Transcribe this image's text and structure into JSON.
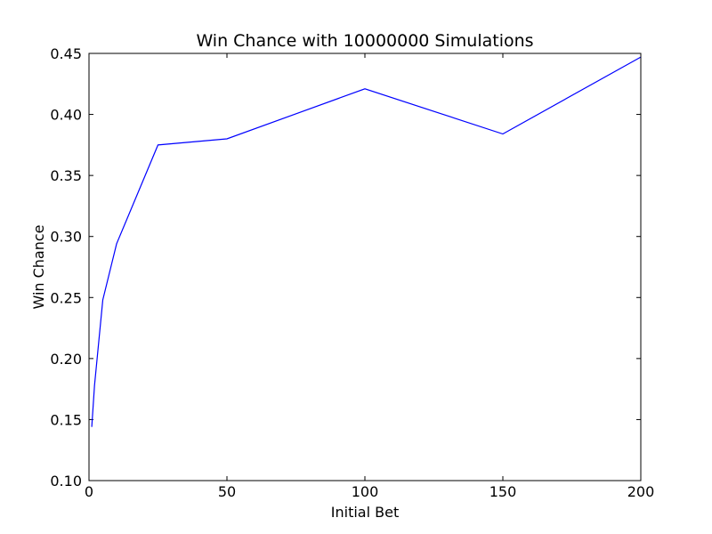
{
  "chart_data": {
    "type": "line",
    "title": "Win Chance with 10000000 Simulations",
    "xlabel": "Initial Bet",
    "ylabel": "Win Chance",
    "xlim": [
      0,
      200
    ],
    "ylim": [
      0.1,
      0.45
    ],
    "x_ticks": [
      0,
      50,
      100,
      150,
      200
    ],
    "x_tick_labels": [
      "0",
      "50",
      "100",
      "150",
      "200"
    ],
    "y_ticks": [
      0.1,
      0.15,
      0.2,
      0.25,
      0.3,
      0.35,
      0.4,
      0.45
    ],
    "y_tick_labels": [
      "0.10",
      "0.15",
      "0.20",
      "0.25",
      "0.30",
      "0.35",
      "0.40",
      "0.45"
    ],
    "grid": false,
    "series": [
      {
        "color": "#0000ff",
        "x": [
          1,
          2,
          5,
          10,
          25,
          50,
          100,
          150,
          200
        ],
        "y": [
          0.144,
          0.178,
          0.248,
          0.294,
          0.375,
          0.38,
          0.421,
          0.384,
          0.447
        ]
      }
    ]
  }
}
